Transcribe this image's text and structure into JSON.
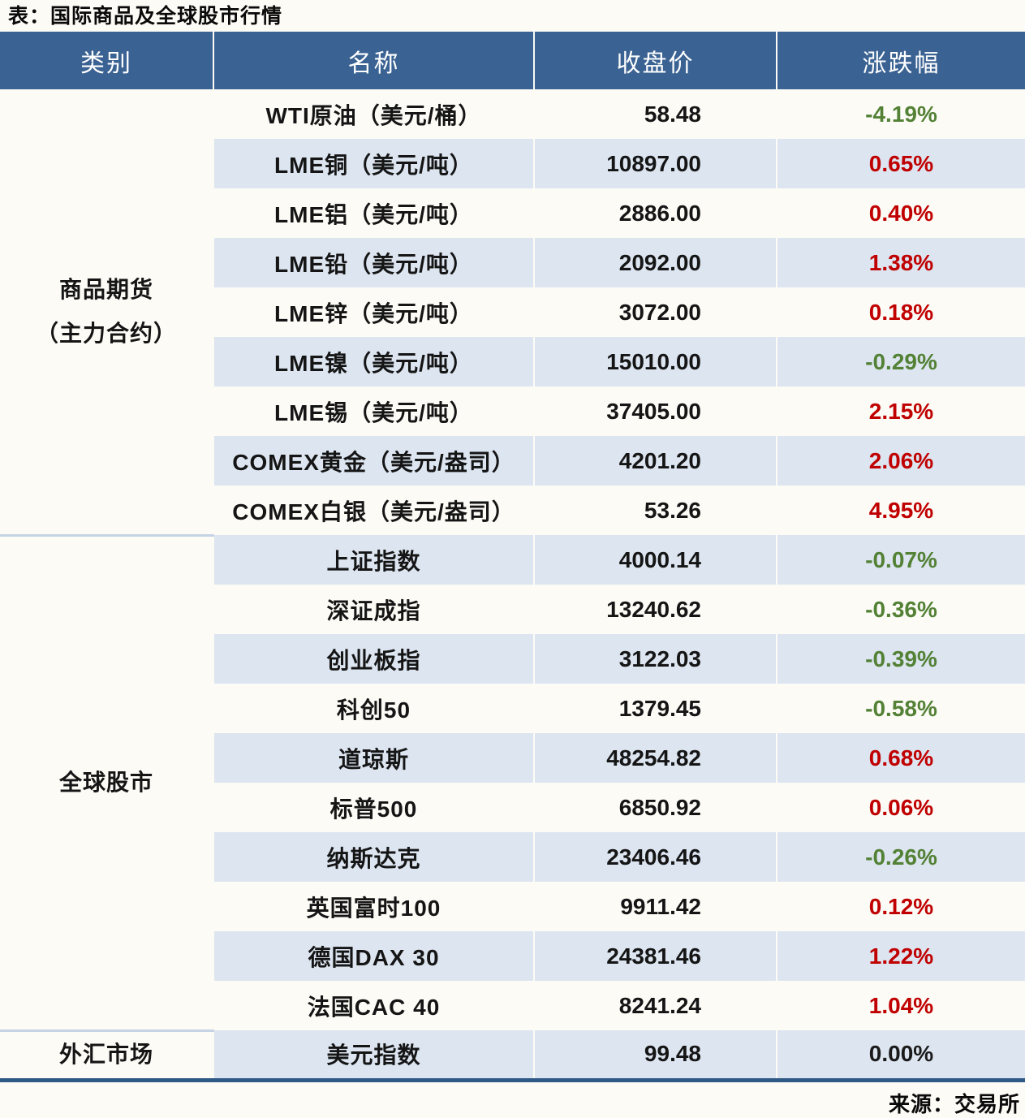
{
  "title": "表：国际商品及全球股市行情",
  "source": "来源：交易所",
  "colors": {
    "header_bg": "#3a6292",
    "stripe_bg": "#dce5f0",
    "page_bg": "#fcfbf6",
    "positive_red": "#c00000",
    "negative_green": "#538135",
    "neutral_black": "#1a1a1a",
    "section_divider": "#c5d3e4",
    "bottom_border": "#2f5a87"
  },
  "table": {
    "headers": [
      "类别",
      "名称",
      "收盘价",
      "涨跌幅"
    ],
    "sections": [
      {
        "category_lines": [
          "商品期货",
          "（主力合约）"
        ],
        "rows": [
          {
            "name": "WTI原油（美元/桶）",
            "close": "58.48",
            "change": "-4.19%",
            "direction": "down"
          },
          {
            "name": "LME铜（美元/吨）",
            "close": "10897.00",
            "change": "0.65%",
            "direction": "up"
          },
          {
            "name": "LME铝（美元/吨）",
            "close": "2886.00",
            "change": "0.40%",
            "direction": "up"
          },
          {
            "name": "LME铅（美元/吨）",
            "close": "2092.00",
            "change": "1.38%",
            "direction": "up"
          },
          {
            "name": "LME锌（美元/吨）",
            "close": "3072.00",
            "change": "0.18%",
            "direction": "up"
          },
          {
            "name": "LME镍（美元/吨）",
            "close": "15010.00",
            "change": "-0.29%",
            "direction": "down"
          },
          {
            "name": "LME锡（美元/吨）",
            "close": "37405.00",
            "change": "2.15%",
            "direction": "up"
          },
          {
            "name": "COMEX黄金（美元/盎司）",
            "close": "4201.20",
            "change": "2.06%",
            "direction": "up"
          },
          {
            "name": "COMEX白银（美元/盎司）",
            "close": "53.26",
            "change": "4.95%",
            "direction": "up"
          }
        ]
      },
      {
        "category_lines": [
          "全球股市"
        ],
        "rows": [
          {
            "name": "上证指数",
            "close": "4000.14",
            "change": "-0.07%",
            "direction": "down"
          },
          {
            "name": "深证成指",
            "close": "13240.62",
            "change": "-0.36%",
            "direction": "down"
          },
          {
            "name": "创业板指",
            "close": "3122.03",
            "change": "-0.39%",
            "direction": "down"
          },
          {
            "name": "科创50",
            "close": "1379.45",
            "change": "-0.58%",
            "direction": "down"
          },
          {
            "name": "道琼斯",
            "close": "48254.82",
            "change": "0.68%",
            "direction": "up"
          },
          {
            "name": "标普500",
            "close": "6850.92",
            "change": "0.06%",
            "direction": "up"
          },
          {
            "name": "纳斯达克",
            "close": "23406.46",
            "change": "-0.26%",
            "direction": "down"
          },
          {
            "name": "英国富时100",
            "close": "9911.42",
            "change": "0.12%",
            "direction": "up"
          },
          {
            "name": "德国DAX 30",
            "close": "24381.46",
            "change": "1.22%",
            "direction": "up"
          },
          {
            "name": "法国CAC 40",
            "close": "8241.24",
            "change": "1.04%",
            "direction": "up"
          }
        ]
      },
      {
        "category_lines": [
          "外汇市场"
        ],
        "rows": [
          {
            "name": "美元指数",
            "close": "99.48",
            "change": "0.00%",
            "direction": "flat"
          }
        ]
      }
    ]
  },
  "chart_data": {
    "type": "table",
    "title": "表：国际商品及全球股市行情",
    "columns": [
      "类别",
      "名称",
      "收盘价",
      "涨跌幅"
    ],
    "rows": [
      [
        "商品期货（主力合约）",
        "WTI原油（美元/桶）",
        58.48,
        "-4.19%"
      ],
      [
        "商品期货（主力合约）",
        "LME铜（美元/吨）",
        10897.0,
        "0.65%"
      ],
      [
        "商品期货（主力合约）",
        "LME铝（美元/吨）",
        2886.0,
        "0.40%"
      ],
      [
        "商品期货（主力合约）",
        "LME铅（美元/吨）",
        2092.0,
        "1.38%"
      ],
      [
        "商品期货（主力合约）",
        "LME锌（美元/吨）",
        3072.0,
        "0.18%"
      ],
      [
        "商品期货（主力合约）",
        "LME镍（美元/吨）",
        15010.0,
        "-0.29%"
      ],
      [
        "商品期货（主力合约）",
        "LME锡（美元/吨）",
        37405.0,
        "2.15%"
      ],
      [
        "商品期货（主力合约）",
        "COMEX黄金（美元/盎司）",
        4201.2,
        "2.06%"
      ],
      [
        "商品期货（主力合约）",
        "COMEX白银（美元/盎司）",
        53.26,
        "4.95%"
      ],
      [
        "全球股市",
        "上证指数",
        4000.14,
        "-0.07%"
      ],
      [
        "全球股市",
        "深证成指",
        13240.62,
        "-0.36%"
      ],
      [
        "全球股市",
        "创业板指",
        3122.03,
        "-0.39%"
      ],
      [
        "全球股市",
        "科创50",
        1379.45,
        "-0.58%"
      ],
      [
        "全球股市",
        "道琼斯",
        48254.82,
        "0.68%"
      ],
      [
        "全球股市",
        "标普500",
        6850.92,
        "0.06%"
      ],
      [
        "全球股市",
        "纳斯达克",
        23406.46,
        "-0.26%"
      ],
      [
        "全球股市",
        "英国富时100",
        9911.42,
        "0.12%"
      ],
      [
        "全球股市",
        "德国DAX 30",
        24381.46,
        "1.22%"
      ],
      [
        "全球股市",
        "法国CAC 40",
        8241.24,
        "1.04%"
      ],
      [
        "外汇市场",
        "美元指数",
        99.48,
        "0.00%"
      ]
    ],
    "note": "red = rise, green = fall (Chinese market convention); source caption: 来源：交易所"
  }
}
